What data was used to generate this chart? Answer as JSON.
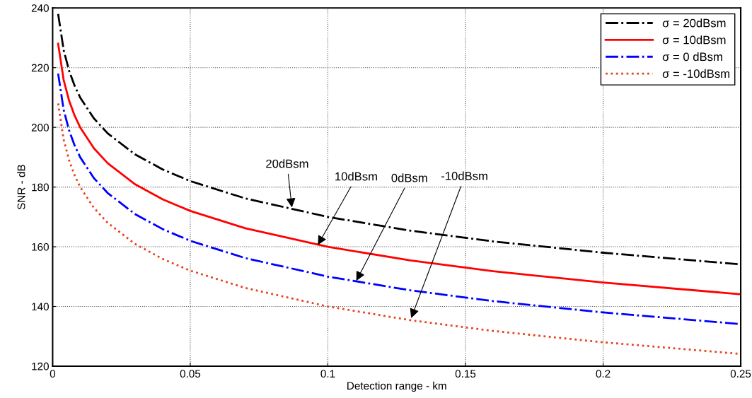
{
  "chart_data": {
    "type": "line",
    "xlabel": "Detection range - km",
    "ylabel": "SNR - dB",
    "x": [
      0.002,
      0.004,
      0.006,
      0.008,
      0.01,
      0.015,
      0.02,
      0.03,
      0.04,
      0.05,
      0.07,
      0.1,
      0.13,
      0.16,
      0.2,
      0.25
    ],
    "series": [
      {
        "name": "σ = 20dBsm",
        "color": "#000000",
        "line_style": "dashdot",
        "values": [
          238,
          225.9,
          218.9,
          213.9,
          210,
          203,
          198,
          190.9,
          185.9,
          182,
          176.2,
          170,
          165.4,
          161.8,
          158,
          154.1
        ]
      },
      {
        "name": "σ = 10dBsm",
        "color": "#ff0000",
        "line_style": "solid",
        "values": [
          228,
          215.9,
          208.9,
          203.9,
          200,
          193,
          188,
          180.9,
          175.9,
          172,
          166.2,
          160,
          155.4,
          151.8,
          148,
          144.1
        ]
      },
      {
        "name": "σ = 0 dBsm",
        "color": "#0000ff",
        "line_style": "dashdot",
        "values": [
          218,
          205.9,
          198.9,
          193.9,
          190,
          183,
          178,
          170.9,
          165.9,
          162,
          156.2,
          150,
          145.4,
          141.8,
          138,
          134.1
        ]
      },
      {
        "name": "σ = -10dBsm",
        "color": "#e8401c",
        "line_style": "dotted",
        "values": [
          208,
          195.9,
          188.9,
          183.9,
          180,
          173,
          168,
          160.9,
          155.9,
          152,
          146.2,
          140,
          135.4,
          131.8,
          128,
          124.1
        ]
      }
    ],
    "annotations": [
      {
        "text": "20dBsm",
        "x": 0.087,
        "y": 172.5
      },
      {
        "text": "10dBsm",
        "x": 0.096,
        "y": 160
      },
      {
        "text": "0dBsm",
        "x": 0.11,
        "y": 148
      },
      {
        "text": "-10dBsm",
        "x": 0.13,
        "y": 135.5
      }
    ],
    "xlim": [
      0,
      0.25
    ],
    "ylim": [
      120,
      240
    ],
    "xticks": [
      0,
      0.05,
      0.1,
      0.15,
      0.2,
      0.25
    ],
    "yticks": [
      120,
      140,
      160,
      180,
      200,
      220,
      240
    ],
    "grid": true,
    "legend": "top right",
    "marker": "none"
  }
}
